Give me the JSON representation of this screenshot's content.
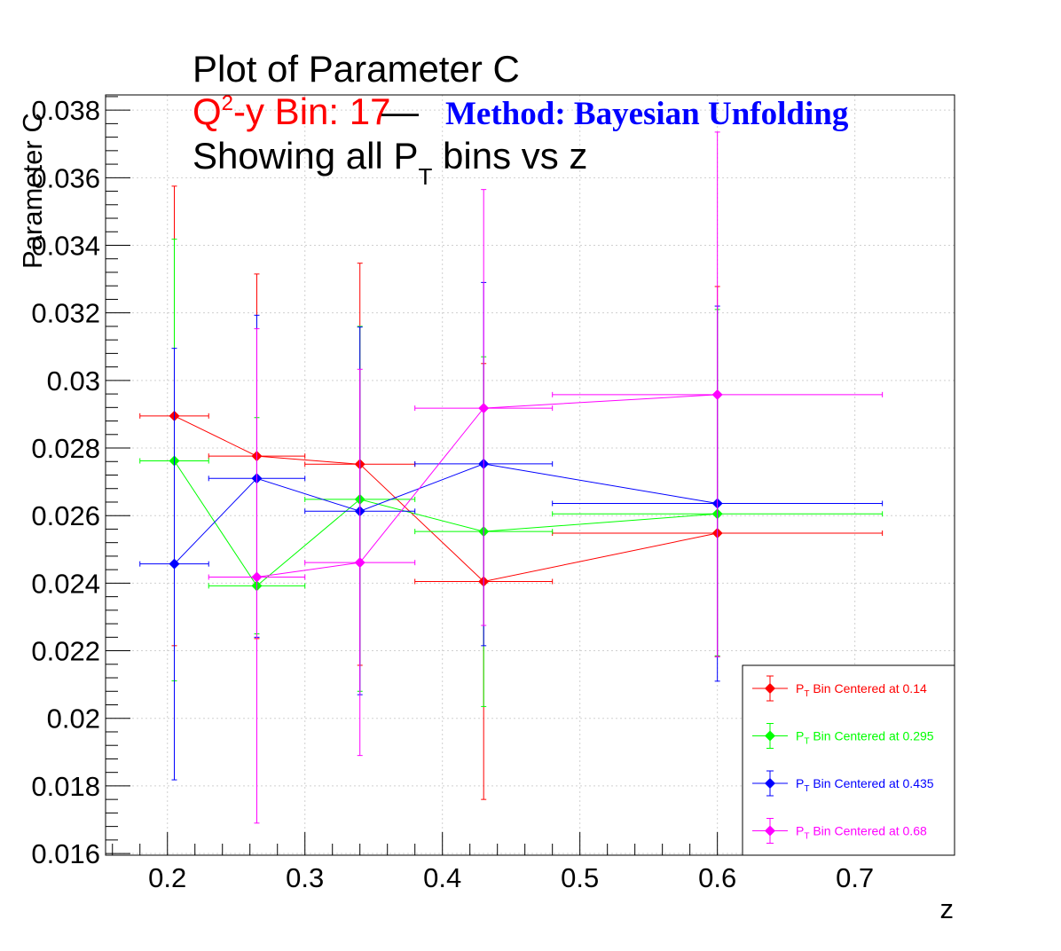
{
  "title": {
    "line1": "Plot of Parameter C",
    "bin_text": "Q",
    "bin_sup": "2",
    "bin_rest": "-y Bin: 17",
    "dash": "—",
    "method": "Method: Bayesian Unfolding",
    "line3_pre": "Showing all P",
    "line3_sub": "T",
    "line3_post": " bins vs z"
  },
  "colors": {
    "red": "#ff0000",
    "green": "#00ff00",
    "blue": "#0000ff",
    "magenta": "#ff00ff",
    "method": "#0000ff"
  },
  "chart_data": {
    "type": "scatter",
    "xlabel": "z",
    "ylabel": "Parameter C",
    "xlim": [
      0.155,
      0.7725
    ],
    "ylim": [
      0.01595,
      0.03845
    ],
    "xticks": [
      {
        "value": 0.2,
        "label": "0.2"
      },
      {
        "value": 0.3,
        "label": "0.3"
      },
      {
        "value": 0.4,
        "label": "0.4"
      },
      {
        "value": 0.5,
        "label": "0.5"
      },
      {
        "value": 0.6,
        "label": "0.6"
      },
      {
        "value": 0.7,
        "label": "0.7"
      }
    ],
    "yticks": [
      {
        "value": 0.016,
        "label": "0.016"
      },
      {
        "value": 0.018,
        "label": "0.018"
      },
      {
        "value": 0.02,
        "label": "0.02"
      },
      {
        "value": 0.022,
        "label": "0.022"
      },
      {
        "value": 0.024,
        "label": "0.024"
      },
      {
        "value": 0.026,
        "label": "0.026"
      },
      {
        "value": 0.028,
        "label": "0.028"
      },
      {
        "value": 0.03,
        "label": "0.03"
      },
      {
        "value": 0.032,
        "label": "0.032"
      },
      {
        "value": 0.034,
        "label": "0.034"
      },
      {
        "value": 0.036,
        "label": "0.036"
      },
      {
        "value": 0.038,
        "label": "0.038"
      }
    ],
    "grid": true,
    "legend_position": "bottom-right",
    "series": [
      {
        "name": "P_T Bin Centered at 0.14",
        "legend_pre": "P",
        "legend_sub": "T",
        "legend_post": " Bin Centered at 0.14",
        "color": "#ff0000",
        "points": [
          {
            "x": 0.205,
            "xlo": 0.18,
            "xhi": 0.23,
            "y": 0.02895,
            "ylo": 0.02215,
            "yhi": 0.03575
          },
          {
            "x": 0.265,
            "xlo": 0.23,
            "xhi": 0.3,
            "y": 0.02776,
            "ylo": 0.02236,
            "yhi": 0.03315
          },
          {
            "x": 0.34,
            "xlo": 0.3,
            "xhi": 0.38,
            "y": 0.02752,
            "ylo": 0.02157,
            "yhi": 0.03347
          },
          {
            "x": 0.43,
            "xlo": 0.38,
            "xhi": 0.48,
            "y": 0.02405,
            "ylo": 0.0176,
            "yhi": 0.0305
          },
          {
            "x": 0.6,
            "xlo": 0.48,
            "xhi": 0.72,
            "y": 0.02548,
            "ylo": 0.02183,
            "yhi": 0.03278
          }
        ]
      },
      {
        "name": "P_T Bin Centered at 0.295",
        "legend_pre": "P",
        "legend_sub": "T",
        "legend_post": " Bin Centered at 0.295",
        "color": "#00ff00",
        "points": [
          {
            "x": 0.205,
            "xlo": 0.18,
            "xhi": 0.23,
            "y": 0.02762,
            "ylo": 0.02111,
            "yhi": 0.03418
          },
          {
            "x": 0.265,
            "xlo": 0.23,
            "xhi": 0.3,
            "y": 0.02392,
            "ylo": 0.0225,
            "yhi": 0.0289
          },
          {
            "x": 0.34,
            "xlo": 0.3,
            "xhi": 0.38,
            "y": 0.02648,
            "ylo": 0.0208,
            "yhi": 0.0316
          },
          {
            "x": 0.43,
            "xlo": 0.38,
            "xhi": 0.48,
            "y": 0.02553,
            "ylo": 0.02035,
            "yhi": 0.0307
          },
          {
            "x": 0.6,
            "xlo": 0.48,
            "xhi": 0.72,
            "y": 0.02605,
            "ylo": 0.02185,
            "yhi": 0.0321
          }
        ]
      },
      {
        "name": "P_T Bin Centered at 0.435",
        "legend_pre": "P",
        "legend_sub": "T",
        "legend_post": " Bin Centered at 0.435",
        "color": "#0000ff",
        "points": [
          {
            "x": 0.205,
            "xlo": 0.18,
            "xhi": 0.23,
            "y": 0.02457,
            "ylo": 0.01818,
            "yhi": 0.03095
          },
          {
            "x": 0.265,
            "xlo": 0.23,
            "xhi": 0.3,
            "y": 0.0271,
            "ylo": 0.0224,
            "yhi": 0.03193
          },
          {
            "x": 0.34,
            "xlo": 0.3,
            "xhi": 0.38,
            "y": 0.02613,
            "ylo": 0.0207,
            "yhi": 0.03158
          },
          {
            "x": 0.43,
            "xlo": 0.38,
            "xhi": 0.48,
            "y": 0.02753,
            "ylo": 0.02215,
            "yhi": 0.0329
          },
          {
            "x": 0.6,
            "xlo": 0.48,
            "xhi": 0.72,
            "y": 0.02636,
            "ylo": 0.0211,
            "yhi": 0.0322
          }
        ]
      },
      {
        "name": "P_T Bin Centered at 0.68",
        "legend_pre": "P",
        "legend_sub": "T",
        "legend_post": " Bin Centered at 0.68",
        "color": "#ff00ff",
        "points": [
          {
            "x": 0.265,
            "xlo": 0.23,
            "xhi": 0.3,
            "y": 0.02418,
            "ylo": 0.0169,
            "yhi": 0.03153
          },
          {
            "x": 0.34,
            "xlo": 0.3,
            "xhi": 0.38,
            "y": 0.02461,
            "ylo": 0.0189,
            "yhi": 0.03033
          },
          {
            "x": 0.43,
            "xlo": 0.38,
            "xhi": 0.48,
            "y": 0.02918,
            "ylo": 0.02275,
            "yhi": 0.03565
          },
          {
            "x": 0.6,
            "xlo": 0.48,
            "xhi": 0.72,
            "y": 0.02958,
            "ylo": 0.02182,
            "yhi": 0.03735
          }
        ]
      }
    ]
  }
}
